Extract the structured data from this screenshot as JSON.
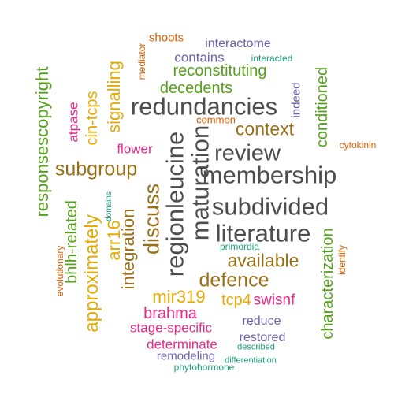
{
  "words": {
    "redundancies": "redundancies",
    "membership": "membership",
    "subdivided": "subdivided",
    "literature": "literature",
    "review": "review",
    "context": "context",
    "subgroup": "subgroup",
    "regionleucine": "regionleucine",
    "maturation": "maturation",
    "defence": "defence",
    "available": "available",
    "discuss": "discuss",
    "integration": "integration",
    "approximately": "approximately",
    "responsescopyright": "responsescopyright",
    "bhlh_related": "bhlh-related",
    "arr16": "arr16",
    "cin_tcps": "cin-tcps",
    "signalling": "signalling",
    "decedents": "decedents",
    "reconstituting": "reconstituting",
    "contains": "contains",
    "interactome": "interactome",
    "interacted": "interacted",
    "shoots": "shoots",
    "mediator": "mediator",
    "indeed": "indeed",
    "conditioned": "conditioned",
    "cytokinin": "cytokinin",
    "common": "common",
    "flower": "flower",
    "atpase": "atpase",
    "domains": "domains",
    "evolutionary": "evolutionary",
    "primordia": "primordia",
    "characterization": "characterization",
    "identify": "identify",
    "mir319": "mir319",
    "tcp4": "tcp4",
    "swisnf": "swisnf",
    "brahma": "brahma",
    "stage_specific": "stage-specific",
    "reduce": "reduce",
    "restored": "restored",
    "determinate": "determinate",
    "described": "described",
    "remodeling": "remodeling",
    "differentiation": "differentiation",
    "phytohormone": "phytohormone"
  },
  "colors": {
    "gray": "#4d4d4d",
    "green": "#55a11c",
    "orange": "#d95f02",
    "purple": "#6a63ad",
    "teal": "#1b9e77",
    "pink": "#e7298a",
    "gold": "#e6ab02",
    "brown": "#9a7016"
  }
}
